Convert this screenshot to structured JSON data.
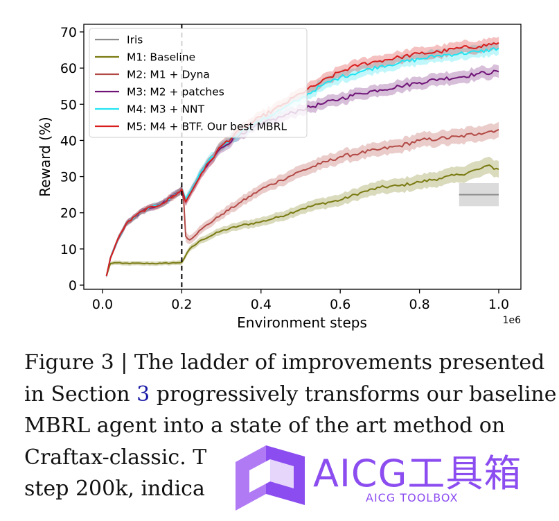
{
  "chart_data": {
    "type": "line",
    "title": "",
    "xlabel": "Environment steps",
    "ylabel": "Reward (%)",
    "x_multiplier": "1e6",
    "xlim": [
      0.0,
      1.0
    ],
    "ylim": [
      0,
      70
    ],
    "xticks": [
      0.0,
      0.2,
      0.4,
      0.6,
      0.8,
      1.0
    ],
    "xtick_labels": [
      "0.0",
      "0.2",
      "0.4",
      "0.6",
      "0.8",
      "1.0"
    ],
    "yticks": [
      0,
      10,
      20,
      30,
      40,
      50,
      60,
      70
    ],
    "ytick_labels": [
      "0",
      "10",
      "20",
      "30",
      "40",
      "50",
      "60",
      "70"
    ],
    "grid": false,
    "legend_position": "top-left",
    "vline": {
      "x": 0.2,
      "style": "dashed",
      "color": "#000000"
    },
    "series": [
      {
        "name": "Iris",
        "color": "#8c8c8c",
        "band_color": "#cfcfcf",
        "x": [
          0.9,
          1.0
        ],
        "y": [
          25,
          25
        ],
        "band": [
          3.2,
          3.2
        ]
      },
      {
        "name": "M1: Baseline",
        "color": "#7a7a12",
        "x": [
          0.01,
          0.02,
          0.03,
          0.05,
          0.1,
          0.15,
          0.19,
          0.2,
          0.22,
          0.25,
          0.3,
          0.35,
          0.4,
          0.45,
          0.5,
          0.55,
          0.6,
          0.65,
          0.7,
          0.75,
          0.8,
          0.85,
          0.9,
          0.95,
          0.97,
          1.0
        ],
        "y": [
          2.5,
          6.0,
          6.2,
          6.0,
          6.0,
          6.0,
          6.2,
          6.3,
          10.0,
          12.5,
          15.0,
          16.5,
          17.5,
          19.0,
          21.0,
          22.5,
          23.5,
          25.5,
          27.0,
          27.5,
          28.5,
          29.5,
          30.5,
          32.0,
          33.0,
          32.0
        ],
        "band": [
          0.5,
          0.5,
          0.6,
          0.6,
          0.6,
          0.6,
          0.6,
          0.7,
          0.8,
          0.9,
          1.0,
          1.1,
          1.2,
          1.3,
          1.4,
          1.5,
          1.6,
          1.7,
          1.8,
          1.9,
          2.0,
          2.1,
          2.2,
          2.3,
          2.3,
          2.3
        ]
      },
      {
        "name": "M2: M1 + Dyna",
        "color": "#b34a46",
        "x": [
          0.01,
          0.02,
          0.04,
          0.06,
          0.1,
          0.15,
          0.19,
          0.2,
          0.205,
          0.21,
          0.22,
          0.25,
          0.3,
          0.35,
          0.4,
          0.45,
          0.5,
          0.55,
          0.6,
          0.65,
          0.7,
          0.75,
          0.8,
          0.85,
          0.9,
          0.95,
          1.0
        ],
        "y": [
          2.5,
          7.5,
          13.0,
          17.0,
          20.5,
          22.5,
          25.5,
          26.5,
          23.0,
          13.5,
          12.5,
          15.5,
          19.5,
          23.0,
          26.5,
          29.0,
          31.5,
          33.5,
          35.5,
          36.5,
          37.5,
          38.5,
          40.0,
          40.5,
          41.0,
          42.0,
          43.0
        ],
        "band": [
          0.5,
          0.7,
          0.8,
          0.8,
          0.8,
          0.9,
          1.0,
          1.0,
          1.5,
          1.5,
          1.2,
          1.2,
          1.3,
          1.4,
          1.5,
          1.6,
          1.7,
          1.7,
          1.8,
          1.8,
          1.9,
          1.9,
          2.0,
          2.0,
          2.1,
          2.1,
          2.1
        ]
      },
      {
        "name": "M3: M2 + patches",
        "color": "#6f1477",
        "x": [
          0.01,
          0.02,
          0.04,
          0.06,
          0.1,
          0.15,
          0.19,
          0.2,
          0.21,
          0.22,
          0.25,
          0.3,
          0.35,
          0.4,
          0.45,
          0.5,
          0.55,
          0.6,
          0.65,
          0.7,
          0.75,
          0.8,
          0.85,
          0.9,
          0.95,
          1.0
        ],
        "y": [
          2.5,
          7.5,
          13.0,
          17.0,
          20.5,
          22.5,
          25.5,
          26.5,
          23.0,
          25.0,
          31.0,
          38.0,
          42.0,
          44.5,
          46.5,
          48.5,
          50.0,
          51.5,
          53.0,
          54.0,
          55.0,
          56.0,
          57.0,
          57.5,
          58.5,
          59.0
        ],
        "band": [
          0.5,
          0.7,
          0.8,
          0.8,
          0.8,
          0.9,
          1.0,
          1.0,
          1.2,
          1.2,
          1.3,
          1.4,
          1.4,
          1.5,
          1.5,
          1.5,
          1.6,
          1.6,
          1.6,
          1.6,
          1.7,
          1.7,
          1.7,
          1.7,
          1.7,
          1.7
        ]
      },
      {
        "name": "M4: M3 + NNT",
        "color": "#22e4f2",
        "x": [
          0.01,
          0.02,
          0.04,
          0.06,
          0.1,
          0.15,
          0.19,
          0.2,
          0.21,
          0.22,
          0.25,
          0.3,
          0.35,
          0.4,
          0.45,
          0.5,
          0.55,
          0.6,
          0.65,
          0.7,
          0.75,
          0.8,
          0.85,
          0.9,
          0.95,
          1.0
        ],
        "y": [
          2.5,
          7.5,
          13.0,
          17.0,
          20.5,
          22.5,
          25.5,
          26.5,
          23.5,
          25.5,
          31.5,
          38.5,
          42.5,
          45.5,
          48.5,
          51.5,
          55.0,
          57.5,
          59.0,
          60.5,
          61.5,
          62.5,
          63.5,
          64.0,
          64.5,
          65.5
        ],
        "band": [
          0.5,
          0.7,
          0.8,
          0.8,
          0.8,
          0.9,
          1.0,
          1.0,
          1.2,
          1.2,
          1.3,
          1.4,
          1.4,
          1.5,
          1.5,
          1.5,
          1.6,
          1.6,
          1.6,
          1.6,
          1.6,
          1.7,
          1.7,
          1.7,
          1.7,
          1.7
        ]
      },
      {
        "name": "M5: M4 + BTF. Our best MBRL",
        "color": "#d81e1e",
        "x": [
          0.01,
          0.02,
          0.04,
          0.06,
          0.1,
          0.15,
          0.19,
          0.2,
          0.21,
          0.22,
          0.25,
          0.3,
          0.35,
          0.4,
          0.45,
          0.5,
          0.55,
          0.6,
          0.65,
          0.7,
          0.75,
          0.8,
          0.85,
          0.9,
          0.95,
          1.0
        ],
        "y": [
          2.5,
          7.5,
          13.0,
          17.0,
          20.5,
          22.5,
          25.5,
          26.5,
          23.0,
          25.0,
          31.0,
          38.5,
          43.0,
          46.5,
          49.5,
          53.0,
          56.0,
          59.0,
          61.0,
          62.0,
          63.0,
          64.0,
          64.5,
          65.5,
          66.0,
          67.0
        ],
        "band": [
          0.5,
          0.7,
          0.8,
          0.8,
          0.8,
          0.9,
          1.0,
          1.0,
          1.2,
          1.2,
          1.3,
          1.4,
          1.4,
          1.5,
          1.5,
          1.5,
          1.6,
          1.6,
          1.6,
          1.6,
          1.6,
          1.7,
          1.7,
          1.7,
          1.7,
          1.7
        ]
      }
    ]
  },
  "caption": {
    "line1": "Figure 3 | The ladder of improvements presented",
    "line2_pre": "in Section ",
    "line2_ref": "3",
    "line2_post": " progressively transforms our baseline",
    "line3": "MBRL agent into a state of the art method on",
    "line4": "Craftax-classic. T",
    "line5": "step 200k, indica"
  },
  "watermark": {
    "title": "AICG工具箱",
    "subtitle": "AICG TOOLBOX",
    "color": "#8c4df0"
  }
}
